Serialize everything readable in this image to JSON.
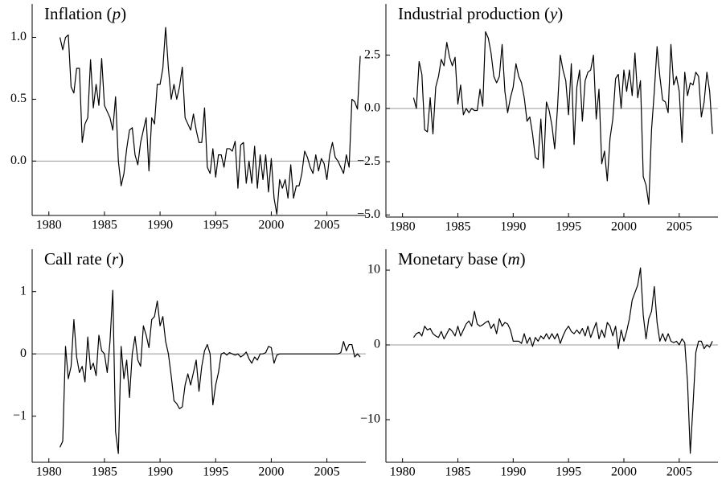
{
  "chart_data": [
    {
      "type": "line",
      "title": "Inflation (p)",
      "color": "#000000",
      "zero_line": true,
      "xlim": [
        1978.5,
        2008.5
      ],
      "xticks": [
        1980,
        1985,
        1990,
        1995,
        2000,
        2005
      ],
      "ylim": [
        -0.44,
        1.27
      ],
      "yticks": [
        {
          "value": 0,
          "label": "0.0"
        },
        0.5,
        {
          "value": 1,
          "label": "1.0"
        }
      ],
      "x": [
        1981,
        1981.25,
        1981.5,
        1981.75,
        1982,
        1982.25,
        1982.5,
        1982.75,
        1983,
        1983.25,
        1983.5,
        1983.75,
        1984,
        1984.25,
        1984.5,
        1984.75,
        1985,
        1985.25,
        1985.5,
        1985.75,
        1986,
        1986.25,
        1986.5,
        1986.75,
        1987,
        1987.25,
        1987.5,
        1987.75,
        1988,
        1988.25,
        1988.5,
        1988.75,
        1989,
        1989.25,
        1989.5,
        1989.75,
        1990,
        1990.25,
        1990.5,
        1990.75,
        1991,
        1991.25,
        1991.5,
        1991.75,
        1992,
        1992.25,
        1992.5,
        1992.75,
        1993,
        1993.25,
        1993.5,
        1993.75,
        1994,
        1994.25,
        1994.5,
        1994.75,
        1995,
        1995.25,
        1995.5,
        1995.75,
        1996,
        1996.25,
        1996.5,
        1996.75,
        1997,
        1997.25,
        1997.5,
        1997.75,
        1998,
        1998.25,
        1998.5,
        1998.75,
        1999,
        1999.25,
        1999.5,
        1999.75,
        2000,
        2000.25,
        2000.5,
        2000.75,
        2001,
        2001.25,
        2001.5,
        2001.75,
        2002,
        2002.25,
        2002.5,
        2002.75,
        2003,
        2003.25,
        2003.5,
        2003.75,
        2004,
        2004.25,
        2004.5,
        2004.75,
        2005,
        2005.25,
        2005.5,
        2005.75,
        2006,
        2006.25,
        2006.5,
        2006.75,
        2007,
        2007.25,
        2007.5,
        2007.75,
        2008
      ],
      "values": [
        1.0,
        0.9,
        1.0,
        1.02,
        0.6,
        0.55,
        0.75,
        0.75,
        0.15,
        0.3,
        0.35,
        0.82,
        0.43,
        0.62,
        0.45,
        0.83,
        0.45,
        0.4,
        0.35,
        0.25,
        0.52,
        0.0,
        -0.2,
        -0.1,
        0.1,
        0.25,
        0.27,
        0.05,
        -0.03,
        0.15,
        0.25,
        0.35,
        -0.08,
        0.35,
        0.3,
        0.62,
        0.62,
        0.75,
        1.08,
        0.75,
        0.5,
        0.62,
        0.5,
        0.6,
        0.76,
        0.35,
        0.3,
        0.25,
        0.38,
        0.25,
        0.15,
        0.15,
        0.43,
        -0.05,
        -0.1,
        0.1,
        -0.13,
        0.05,
        0.05,
        -0.05,
        0.1,
        0.1,
        0.08,
        0.16,
        -0.22,
        0.13,
        0.15,
        -0.18,
        0.0,
        -0.18,
        0.12,
        -0.22,
        0.05,
        -0.15,
        0.05,
        -0.25,
        0.02,
        -0.3,
        -0.43,
        -0.15,
        -0.22,
        -0.15,
        -0.3,
        -0.03,
        -0.3,
        -0.2,
        -0.2,
        -0.1,
        0.08,
        0.03,
        -0.05,
        -0.1,
        0.05,
        -0.08,
        0.02,
        -0.02,
        -0.15,
        0.05,
        0.15,
        0.03,
        0.0,
        -0.05,
        -0.1,
        0.05,
        -0.05,
        0.5,
        0.48,
        0.42,
        0.85
      ]
    },
    {
      "type": "line",
      "title": "Industrial production (y)",
      "color": "#000000",
      "zero_line": true,
      "xlim": [
        1978.5,
        2008.5
      ],
      "xticks": [
        1980,
        1985,
        1990,
        1995,
        2000,
        2005
      ],
      "ylim": [
        -5.1,
        4.9
      ],
      "yticks": [
        {
          "value": -5,
          "label": "−5.0"
        },
        {
          "value": -2.5,
          "label": "−2.5"
        },
        {
          "value": 0,
          "label": "0.0"
        },
        2.5
      ],
      "x": [
        1981,
        1981.25,
        1981.5,
        1981.75,
        1982,
        1982.25,
        1982.5,
        1982.75,
        1983,
        1983.25,
        1983.5,
        1983.75,
        1984,
        1984.25,
        1984.5,
        1984.75,
        1985,
        1985.25,
        1985.5,
        1985.75,
        1986,
        1986.25,
        1986.5,
        1986.75,
        1987,
        1987.25,
        1987.5,
        1987.75,
        1988,
        1988.25,
        1988.5,
        1988.75,
        1989,
        1989.25,
        1989.5,
        1989.75,
        1990,
        1990.25,
        1990.5,
        1990.75,
        1991,
        1991.25,
        1991.5,
        1991.75,
        1992,
        1992.25,
        1992.5,
        1992.75,
        1993,
        1993.25,
        1993.5,
        1993.75,
        1994,
        1994.25,
        1994.5,
        1994.75,
        1995,
        1995.25,
        1995.5,
        1995.75,
        1996,
        1996.25,
        1996.5,
        1996.75,
        1997,
        1997.25,
        1997.5,
        1997.75,
        1998,
        1998.25,
        1998.5,
        1998.75,
        1999,
        1999.25,
        1999.5,
        1999.75,
        2000,
        2000.25,
        2000.5,
        2000.75,
        2001,
        2001.25,
        2001.5,
        2001.75,
        2002,
        2002.25,
        2002.5,
        2002.75,
        2003,
        2003.25,
        2003.5,
        2003.75,
        2004,
        2004.25,
        2004.5,
        2004.75,
        2005,
        2005.25,
        2005.5,
        2005.75,
        2006,
        2006.25,
        2006.5,
        2006.75,
        2007,
        2007.25,
        2007.5,
        2007.75,
        2008
      ],
      "values": [
        0.5,
        0.0,
        2.2,
        1.6,
        -1.0,
        -1.1,
        0.5,
        -1.2,
        1.0,
        1.5,
        2.3,
        2.0,
        3.1,
        2.4,
        2.0,
        2.4,
        0.2,
        1.1,
        -0.3,
        0.0,
        -0.2,
        0.0,
        -0.1,
        -0.1,
        0.9,
        0.1,
        3.6,
        3.3,
        2.6,
        1.5,
        1.2,
        1.5,
        3.0,
        0.8,
        -0.2,
        0.5,
        1.0,
        2.1,
        1.5,
        1.2,
        0.5,
        -0.6,
        -0.4,
        -1.2,
        -2.3,
        -2.4,
        -0.5,
        -2.8,
        0.3,
        -0.1,
        -0.8,
        -1.9,
        0.0,
        2.5,
        1.8,
        1.3,
        -0.3,
        2.1,
        -1.7,
        1.0,
        1.8,
        -0.6,
        1.3,
        1.7,
        1.8,
        2.5,
        -0.5,
        0.9,
        -2.6,
        -2.0,
        -3.4,
        -1.4,
        -0.5,
        1.4,
        1.6,
        0.0,
        1.8,
        0.8,
        1.8,
        0.6,
        2.6,
        0.5,
        1.3,
        -3.2,
        -3.6,
        -4.5,
        -1.0,
        0.8,
        2.9,
        1.5,
        0.4,
        0.3,
        -0.2,
        3.0,
        1.1,
        1.5,
        0.8,
        -1.6,
        1.7,
        0.6,
        1.2,
        1.1,
        1.7,
        1.5,
        -0.4,
        0.3,
        1.7,
        0.8,
        -1.2
      ]
    },
    {
      "type": "line",
      "title": "Call rate (r)",
      "color": "#000000",
      "zero_line": true,
      "xlim": [
        1978.5,
        2008.5
      ],
      "xticks": [
        1980,
        1985,
        1990,
        1995,
        2000,
        2005
      ],
      "ylim": [
        -1.74,
        1.68
      ],
      "yticks": [
        {
          "value": -1,
          "label": "−1"
        },
        0,
        1
      ],
      "x": [
        1981,
        1981.25,
        1981.5,
        1981.75,
        1982,
        1982.25,
        1982.5,
        1982.75,
        1983,
        1983.25,
        1983.5,
        1983.75,
        1984,
        1984.25,
        1984.5,
        1984.75,
        1985,
        1985.25,
        1985.5,
        1985.75,
        1986,
        1986.25,
        1986.5,
        1986.75,
        1987,
        1987.25,
        1987.5,
        1987.75,
        1988,
        1988.25,
        1988.5,
        1988.75,
        1989,
        1989.25,
        1989.5,
        1989.75,
        1990,
        1990.25,
        1990.5,
        1990.75,
        1991,
        1991.25,
        1991.5,
        1991.75,
        1992,
        1992.25,
        1992.5,
        1992.75,
        1993,
        1993.25,
        1993.5,
        1993.75,
        1994,
        1994.25,
        1994.5,
        1994.75,
        1995,
        1995.25,
        1995.5,
        1995.75,
        1996,
        1996.25,
        1996.5,
        1996.75,
        1997,
        1997.25,
        1997.5,
        1997.75,
        1998,
        1998.25,
        1998.5,
        1998.75,
        1999,
        1999.25,
        1999.5,
        1999.75,
        2000,
        2000.25,
        2000.5,
        2000.75,
        2001,
        2001.25,
        2001.5,
        2001.75,
        2002,
        2002.25,
        2002.5,
        2002.75,
        2003,
        2003.25,
        2003.5,
        2003.75,
        2004,
        2004.25,
        2004.5,
        2004.75,
        2005,
        2005.25,
        2005.5,
        2005.75,
        2006,
        2006.25,
        2006.5,
        2006.75,
        2007,
        2007.25,
        2007.5,
        2007.75,
        2008
      ],
      "values": [
        -1.5,
        -1.4,
        0.12,
        -0.4,
        -0.2,
        0.55,
        -0.05,
        -0.3,
        -0.2,
        -0.45,
        0.27,
        -0.25,
        -0.15,
        -0.35,
        0.3,
        0.05,
        0.0,
        -0.3,
        0.2,
        1.02,
        -1.25,
        -1.6,
        0.12,
        -0.4,
        -0.1,
        -0.7,
        0.0,
        0.28,
        -0.1,
        -0.2,
        0.45,
        0.3,
        0.1,
        0.55,
        0.6,
        0.85,
        0.45,
        0.6,
        0.2,
        0.0,
        -0.35,
        -0.75,
        -0.8,
        -0.88,
        -0.85,
        -0.5,
        -0.32,
        -0.5,
        -0.3,
        -0.1,
        -0.6,
        -0.2,
        0.05,
        0.15,
        0.0,
        -0.82,
        -0.5,
        -0.3,
        0.0,
        0.02,
        -0.02,
        0.02,
        0.0,
        -0.02,
        0.0,
        -0.05,
        -0.02,
        0.03,
        -0.08,
        -0.15,
        -0.05,
        -0.1,
        0.0,
        0.0,
        0.02,
        0.12,
        0.1,
        -0.15,
        -0.02,
        0.0,
        0.0,
        0.0,
        0.0,
        0.0,
        0.0,
        0.0,
        0.0,
        0.0,
        0.0,
        0.0,
        0.0,
        0.0,
        0.0,
        0.0,
        0.0,
        0.0,
        0.0,
        0.0,
        0.0,
        0.0,
        0.0,
        0.02,
        0.2,
        0.05,
        0.15,
        0.15,
        -0.05,
        0.0,
        -0.05
      ]
    },
    {
      "type": "line",
      "title": "Monetary base (m)",
      "color": "#000000",
      "zero_line": true,
      "xlim": [
        1978.5,
        2008.5
      ],
      "xticks": [
        1980,
        1985,
        1990,
        1995,
        2000,
        2005
      ],
      "ylim": [
        -15.7,
        12.8
      ],
      "yticks": [
        {
          "value": -10,
          "label": "−10"
        },
        0,
        10
      ],
      "x": [
        1981,
        1981.25,
        1981.5,
        1981.75,
        1982,
        1982.25,
        1982.5,
        1982.75,
        1983,
        1983.25,
        1983.5,
        1983.75,
        1984,
        1984.25,
        1984.5,
        1984.75,
        1985,
        1985.25,
        1985.5,
        1985.75,
        1986,
        1986.25,
        1986.5,
        1986.75,
        1987,
        1987.25,
        1987.5,
        1987.75,
        1988,
        1988.25,
        1988.5,
        1988.75,
        1989,
        1989.25,
        1989.5,
        1989.75,
        1990,
        1990.25,
        1990.5,
        1990.75,
        1991,
        1991.25,
        1991.5,
        1991.75,
        1992,
        1992.25,
        1992.5,
        1992.75,
        1993,
        1993.25,
        1993.5,
        1993.75,
        1994,
        1994.25,
        1994.5,
        1994.75,
        1995,
        1995.25,
        1995.5,
        1995.75,
        1996,
        1996.25,
        1996.5,
        1996.75,
        1997,
        1997.25,
        1997.5,
        1997.75,
        1998,
        1998.25,
        1998.5,
        1998.75,
        1999,
        1999.25,
        1999.5,
        1999.75,
        2000,
        2000.25,
        2000.5,
        2000.75,
        2001,
        2001.25,
        2001.5,
        2001.75,
        2002,
        2002.25,
        2002.5,
        2002.75,
        2003,
        2003.25,
        2003.5,
        2003.75,
        2004,
        2004.25,
        2004.5,
        2004.75,
        2005,
        2005.25,
        2005.5,
        2005.75,
        2006,
        2006.25,
        2006.5,
        2006.75,
        2007,
        2007.25,
        2007.5,
        2007.75,
        2008
      ],
      "values": [
        1.0,
        1.5,
        1.7,
        1.2,
        2.5,
        2.0,
        2.2,
        1.5,
        1.2,
        1.0,
        1.8,
        0.8,
        1.5,
        2.2,
        1.8,
        1.2,
        2.5,
        1.2,
        2.0,
        2.8,
        3.2,
        2.5,
        4.5,
        2.8,
        2.5,
        2.7,
        3.0,
        3.2,
        2.2,
        2.8,
        1.5,
        3.5,
        2.5,
        3.0,
        2.8,
        2.0,
        0.5,
        0.5,
        0.5,
        0.2,
        1.5,
        0.2,
        1.0,
        -0.2,
        1.0,
        0.5,
        1.2,
        0.8,
        1.5,
        0.8,
        1.5,
        0.8,
        1.5,
        0.2,
        1.2,
        2.0,
        2.5,
        1.8,
        1.5,
        2.0,
        1.5,
        2.2,
        1.2,
        2.5,
        1.0,
        2.0,
        3.0,
        0.8,
        2.0,
        1.0,
        3.0,
        2.5,
        1.2,
        2.5,
        -0.5,
        2.0,
        0.5,
        1.8,
        3.5,
        6.0,
        7.0,
        8.0,
        10.3,
        4.0,
        0.8,
        3.5,
        4.5,
        7.8,
        3.0,
        0.5,
        1.5,
        0.5,
        1.5,
        0.5,
        0.3,
        0.5,
        0.0,
        0.8,
        0.3,
        -5.0,
        -14.5,
        -8.0,
        -1.0,
        0.5,
        0.5,
        -0.5,
        0.0,
        -0.3,
        0.5
      ]
    }
  ]
}
